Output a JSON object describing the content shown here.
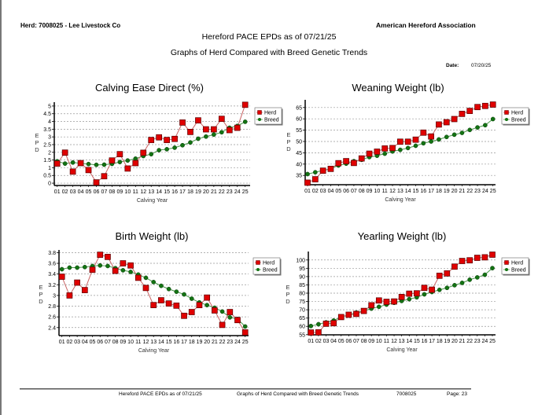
{
  "header": {
    "herd": "Herd: 7008025 - Lee Livestock Co",
    "association": "American Hereford Association",
    "title": "Hereford PACE EPDs as of 07/21/25",
    "subtitle": "Graphs of Herd Compared with Breed Genetic Trends",
    "date_label": "Date:",
    "date_value": "07/20/25"
  },
  "footer": {
    "title": "Hereford PACE EPDs as of 07/21/25",
    "subtitle": "Graphs of Herd Compared with Breed Genetic Trends",
    "herd_id": "7008025",
    "page": "Page:  23"
  },
  "colors": {
    "herd": "#e00000",
    "herd_line": "#c86464",
    "breed": "#137313",
    "breed_line": "#4a9a4a"
  },
  "chart_data": [
    {
      "type": "line",
      "title": "Calving Ease Direct (%)",
      "xlabel": "Calving Year",
      "ylabel": "EPD",
      "ylim": [
        -0.15,
        5.25
      ],
      "yticks": [
        0,
        0.5,
        1,
        1.5,
        2,
        2.5,
        3,
        3.5,
        4,
        4.5,
        5
      ],
      "ytick_labels": [
        "0",
        "0.5",
        "1",
        "1.5",
        "2",
        "2.5",
        "3",
        "3.5",
        "4",
        "4.5",
        "5"
      ],
      "grid": true,
      "legend": "right",
      "categories": [
        "01",
        "02",
        "03",
        "04",
        "05",
        "06",
        "07",
        "08",
        "09",
        "10",
        "11",
        "12",
        "13",
        "14",
        "15",
        "16",
        "17",
        "18",
        "19",
        "20",
        "21",
        "22",
        "23",
        "24",
        "25"
      ],
      "series": [
        {
          "name": "Herd",
          "values": [
            1.27,
            1.98,
            0.75,
            1.3,
            0.85,
            0.05,
            0.45,
            1.47,
            1.88,
            0.95,
            1.3,
            1.97,
            2.8,
            2.97,
            2.8,
            2.87,
            3.93,
            3.32,
            4.07,
            3.49,
            3.49,
            4.17,
            3.44,
            3.59,
            5.08
          ]
        },
        {
          "name": "Breed",
          "values": [
            1.42,
            1.27,
            1.34,
            1.29,
            1.24,
            1.19,
            1.2,
            1.25,
            1.37,
            1.47,
            1.59,
            1.76,
            1.88,
            2.14,
            2.2,
            2.3,
            2.46,
            2.64,
            2.88,
            3.02,
            3.15,
            3.3,
            3.59,
            3.71,
            3.98
          ]
        }
      ]
    },
    {
      "type": "line",
      "title": "Weaning Weight (lb)",
      "xlabel": "Calving Year",
      "ylabel": "EPD",
      "ylim": [
        30.9,
        68.4
      ],
      "yticks": [
        35,
        40,
        45,
        50,
        55,
        60,
        65
      ],
      "ytick_labels": [
        "35",
        "40",
        "45",
        "50",
        "55",
        "60",
        "65"
      ],
      "grid": true,
      "legend": "right",
      "categories": [
        "01",
        "02",
        "03",
        "04",
        "05",
        "06",
        "07",
        "08",
        "09",
        "10",
        "11",
        "12",
        "13",
        "14",
        "15",
        "16",
        "17",
        "18",
        "19",
        "20",
        "21",
        "22",
        "23",
        "24",
        "25"
      ],
      "series": [
        {
          "name": "Herd",
          "values": [
            31.8,
            33.3,
            37.1,
            37.9,
            40.4,
            41.3,
            40.5,
            42.5,
            44.6,
            45.5,
            46.9,
            47.1,
            49.9,
            49.9,
            50.8,
            53.9,
            52.2,
            57.5,
            58.5,
            59.9,
            62.2,
            63.5,
            65.2,
            65.7,
            66.3
          ]
        },
        {
          "name": "Breed",
          "values": [
            35.6,
            36.4,
            37.2,
            38,
            39.4,
            40.2,
            41.3,
            41.9,
            43.1,
            43.7,
            44.6,
            45.6,
            46.3,
            47.1,
            48.1,
            49.2,
            50,
            50.9,
            52,
            53,
            53.8,
            55.1,
            56.2,
            57.2,
            59.9
          ]
        }
      ]
    },
    {
      "type": "line",
      "title": "Birth Weight (lb)",
      "xlabel": "Calving Year",
      "ylabel": "EPD",
      "ylim": [
        2.25,
        3.85
      ],
      "yticks": [
        2.4,
        2.6,
        2.8,
        3,
        3.2,
        3.4,
        3.6,
        3.8
      ],
      "ytick_labels": [
        "2.4",
        "2.6",
        "2.8",
        "3",
        "3.2",
        "3.4",
        "3.6",
        "3.8"
      ],
      "grid": true,
      "legend": "right",
      "categories": [
        "01",
        "02",
        "03",
        "04",
        "05",
        "06",
        "07",
        "08",
        "09",
        "10",
        "11",
        "12",
        "13",
        "14",
        "15",
        "16",
        "17",
        "18",
        "19",
        "20",
        "21",
        "22",
        "23",
        "24",
        "25"
      ],
      "series": [
        {
          "name": "Herd",
          "values": [
            3.35,
            3.0,
            3.24,
            3.1,
            3.48,
            3.76,
            3.72,
            3.46,
            3.6,
            3.56,
            3.33,
            3.14,
            2.82,
            2.91,
            2.85,
            2.81,
            2.62,
            2.69,
            2.82,
            2.96,
            2.72,
            2.45,
            2.69,
            2.54,
            2.31
          ]
        },
        {
          "name": "Breed",
          "values": [
            3.49,
            3.52,
            3.52,
            3.53,
            3.55,
            3.56,
            3.55,
            3.51,
            3.47,
            3.44,
            3.39,
            3.33,
            3.25,
            3.18,
            3.12,
            3.07,
            3.02,
            2.94,
            2.87,
            2.82,
            2.77,
            2.7,
            2.59,
            2.56,
            2.42
          ]
        }
      ]
    },
    {
      "type": "line",
      "title": "Yearling Weight (lb)",
      "xlabel": "Calving Year",
      "ylabel": "EPD",
      "ylim": [
        54.9,
        105.1
      ],
      "yticks": [
        55,
        60,
        65,
        70,
        75,
        80,
        85,
        90,
        95,
        100
      ],
      "ytick_labels": [
        "55",
        "60",
        "65",
        "70",
        "75",
        "80",
        "85",
        "90",
        "95",
        "100"
      ],
      "grid": true,
      "legend": "right",
      "categories": [
        "01",
        "02",
        "03",
        "04",
        "05",
        "06",
        "07",
        "08",
        "09",
        "10",
        "11",
        "12",
        "13",
        "14",
        "15",
        "16",
        "17",
        "18",
        "19",
        "20",
        "21",
        "22",
        "23",
        "24",
        "25"
      ],
      "series": [
        {
          "name": "Herd",
          "values": [
            56.3,
            56.4,
            61.6,
            61.9,
            65.6,
            67,
            67.5,
            69.3,
            72.7,
            75.6,
            74.8,
            75,
            77.7,
            79.7,
            79.9,
            83.2,
            82.1,
            90.5,
            91.9,
            96,
            99.4,
            99.8,
            101.3,
            101.6,
            103.2
          ]
        },
        {
          "name": "Breed",
          "values": [
            60.2,
            61.3,
            62.4,
            63.5,
            65.7,
            66.8,
            68.3,
            69.3,
            70.7,
            71.8,
            73.1,
            74.2,
            75.3,
            76.4,
            77.5,
            79.3,
            80.7,
            82,
            83.2,
            84.8,
            86.2,
            88.1,
            89.5,
            91.1,
            95.1
          ]
        }
      ]
    }
  ]
}
